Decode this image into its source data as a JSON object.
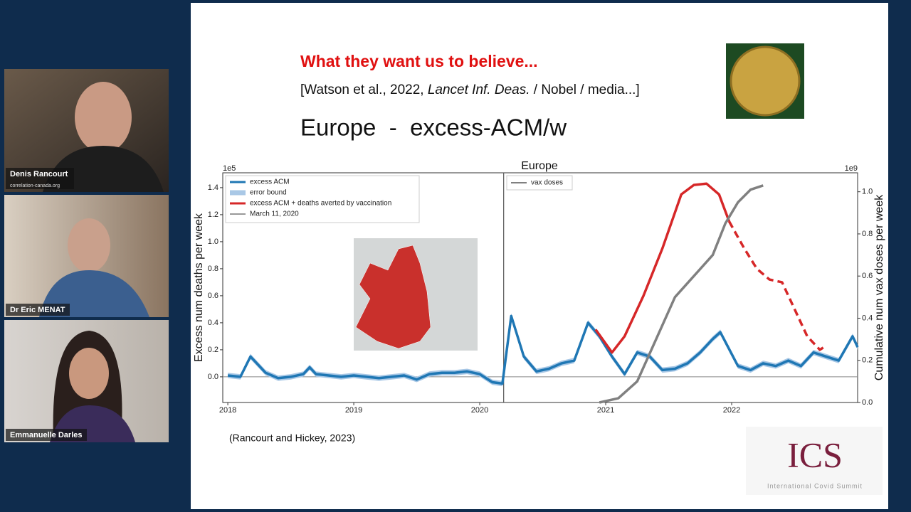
{
  "participants": [
    {
      "name": "Denis Rancourt",
      "subtitle": "correlation-canada.org"
    },
    {
      "name": "Dr Eric MENAT"
    },
    {
      "name": "Emmanuelle Darles"
    }
  ],
  "slide": {
    "title": "What they want us to believe...",
    "citation": [
      "[Watson et al., 2022, ",
      "Lancet Inf. Deas.",
      " / Nobel / media...]"
    ],
    "heading": "Europe  -  excess-ACM/w",
    "source": "(Rancourt and Hickey, 2023)",
    "logo": {
      "letters": "ICS",
      "name": "International Covid Summit"
    },
    "chart": {
      "type": "line",
      "title": "Europe",
      "ylabel": "Excess num deaths per week",
      "y2label": "Cumulative num vax doses per week",
      "yscale": "1e5",
      "y2scale": "1e9",
      "xlim": [
        2017.96,
        2023.0
      ],
      "xticks": [
        2018,
        2019,
        2020,
        2021,
        2022
      ],
      "ylim": [
        -0.19,
        1.51
      ],
      "yticks": [
        {
          "value": 0,
          "label": "0.0"
        },
        0.2,
        0.4,
        0.6,
        0.8,
        {
          "value": 1,
          "label": "1.0"
        },
        1.2,
        1.4
      ],
      "y2lim": [
        0,
        1.09
      ],
      "y2ticks": [
        {
          "value": 0,
          "label": "0.0"
        },
        0.2,
        0.4,
        0.6,
        0.8,
        {
          "value": 1,
          "label": "1.0"
        }
      ],
      "error_band": {
        "name": "error bound",
        "color": "#a9c8e6",
        "width": 0.02
      },
      "vline": {
        "name": "March 11, 2020",
        "x": 2020.19,
        "color": "#999999"
      },
      "series": [
        {
          "name": "excess ACM",
          "color": "#1f77b4",
          "x": [
            2018.0,
            2018.1,
            2018.18,
            2018.3,
            2018.4,
            2018.5,
            2018.6,
            2018.65,
            2018.7,
            2018.8,
            2018.9,
            2019.0,
            2019.1,
            2019.2,
            2019.3,
            2019.4,
            2019.5,
            2019.6,
            2019.7,
            2019.8,
            2019.9,
            2020.0,
            2020.1,
            2020.18,
            2020.25,
            2020.35,
            2020.45,
            2020.55,
            2020.65,
            2020.75,
            2020.86,
            2020.95,
            2021.05,
            2021.15,
            2021.25,
            2021.35,
            2021.45,
            2021.55,
            2021.65,
            2021.75,
            2021.85,
            2021.91,
            2022.05,
            2022.15,
            2022.25,
            2022.35,
            2022.45,
            2022.55,
            2022.65,
            2022.75,
            2022.85,
            2022.96,
            2023.0
          ],
          "values": [
            0.01,
            0.0,
            0.15,
            0.03,
            -0.01,
            0.0,
            0.02,
            0.07,
            0.02,
            0.01,
            0.0,
            0.01,
            0.0,
            -0.01,
            0.0,
            0.01,
            -0.02,
            0.02,
            0.03,
            0.03,
            0.04,
            0.02,
            -0.04,
            -0.05,
            0.45,
            0.15,
            0.04,
            0.06,
            0.1,
            0.12,
            0.4,
            0.3,
            0.15,
            0.02,
            0.18,
            0.15,
            0.05,
            0.06,
            0.1,
            0.18,
            0.28,
            0.33,
            0.08,
            0.05,
            0.1,
            0.08,
            0.12,
            0.08,
            0.18,
            0.15,
            0.12,
            0.3,
            0.22
          ]
        },
        {
          "name": "excess ACM + deaths averted by vaccination",
          "color": "#d62728",
          "dashed_from": 2021.98,
          "x": [
            2020.92,
            2021.05,
            2021.15,
            2021.3,
            2021.45,
            2021.6,
            2021.7,
            2021.8,
            2021.9,
            2021.98,
            2022.1,
            2022.2,
            2022.3,
            2022.4,
            2022.5,
            2022.6,
            2022.7,
            2022.75
          ],
          "values": [
            0.35,
            0.18,
            0.3,
            0.6,
            0.95,
            1.35,
            1.42,
            1.43,
            1.35,
            1.15,
            0.95,
            0.8,
            0.72,
            0.7,
            0.5,
            0.3,
            0.2,
            0.23
          ]
        },
        {
          "name": "vax doses",
          "color": "#808080",
          "axis": "y2",
          "x": [
            2020.95,
            2021.1,
            2021.25,
            2021.4,
            2021.55,
            2021.7,
            2021.85,
            2021.95,
            2022.05,
            2022.15,
            2022.25
          ],
          "values": [
            0,
            0.02,
            0.1,
            0.3,
            0.5,
            0.6,
            0.7,
            0.85,
            0.95,
            1.01,
            1.03
          ]
        }
      ]
    }
  }
}
